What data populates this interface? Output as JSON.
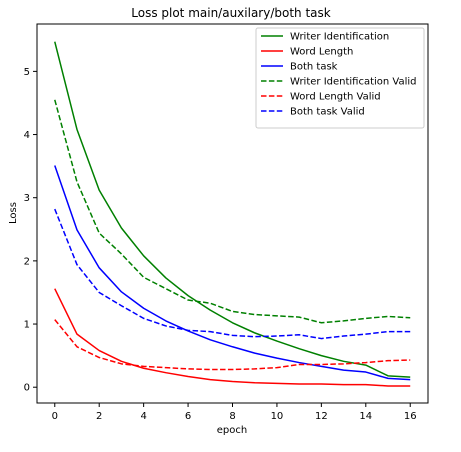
{
  "chart_data": {
    "type": "line",
    "title": "Loss plot main/auxilary/both task",
    "xlabel": "epoch",
    "ylabel": "Loss",
    "xlim": [
      -0.8,
      16.8
    ],
    "ylim": [
      -0.25,
      5.75
    ],
    "xticks": [
      0,
      2,
      4,
      6,
      8,
      10,
      12,
      14,
      16
    ],
    "yticks": [
      0,
      1,
      2,
      3,
      4,
      5
    ],
    "legend_position": "top-right",
    "grid": false,
    "x": [
      0,
      1,
      2,
      3,
      4,
      5,
      6,
      7,
      8,
      9,
      10,
      11,
      12,
      13,
      14,
      15,
      16
    ],
    "series": [
      {
        "name": "Writer Identification",
        "color": "#008000",
        "dashed": false,
        "values": [
          5.47,
          4.08,
          3.12,
          2.52,
          2.08,
          1.73,
          1.45,
          1.22,
          1.02,
          0.86,
          0.73,
          0.61,
          0.5,
          0.41,
          0.35,
          0.18,
          0.16
        ]
      },
      {
        "name": "Word Length",
        "color": "#ff0000",
        "dashed": false,
        "values": [
          1.56,
          0.84,
          0.58,
          0.41,
          0.3,
          0.23,
          0.17,
          0.12,
          0.09,
          0.07,
          0.06,
          0.05,
          0.05,
          0.04,
          0.04,
          0.02,
          0.02
        ]
      },
      {
        "name": "Both task",
        "color": "#0000ff",
        "dashed": false,
        "values": [
          3.51,
          2.49,
          1.89,
          1.51,
          1.25,
          1.05,
          0.89,
          0.75,
          0.64,
          0.54,
          0.46,
          0.39,
          0.33,
          0.27,
          0.24,
          0.14,
          0.12
        ]
      },
      {
        "name": "Writer Identification Valid",
        "color": "#008000",
        "dashed": true,
        "values": [
          4.55,
          3.25,
          2.44,
          2.11,
          1.74,
          1.56,
          1.38,
          1.33,
          1.2,
          1.15,
          1.13,
          1.11,
          1.02,
          1.05,
          1.09,
          1.12,
          1.1
        ]
      },
      {
        "name": "Word Length Valid",
        "color": "#ff0000",
        "dashed": true,
        "values": [
          1.07,
          0.64,
          0.47,
          0.37,
          0.33,
          0.31,
          0.29,
          0.28,
          0.28,
          0.29,
          0.31,
          0.36,
          0.36,
          0.37,
          0.39,
          0.42,
          0.43
        ]
      },
      {
        "name": "Both task Valid",
        "color": "#0000ff",
        "dashed": true,
        "values": [
          2.82,
          1.94,
          1.5,
          1.29,
          1.09,
          0.97,
          0.9,
          0.88,
          0.82,
          0.8,
          0.81,
          0.83,
          0.77,
          0.81,
          0.84,
          0.88,
          0.88
        ]
      }
    ]
  }
}
